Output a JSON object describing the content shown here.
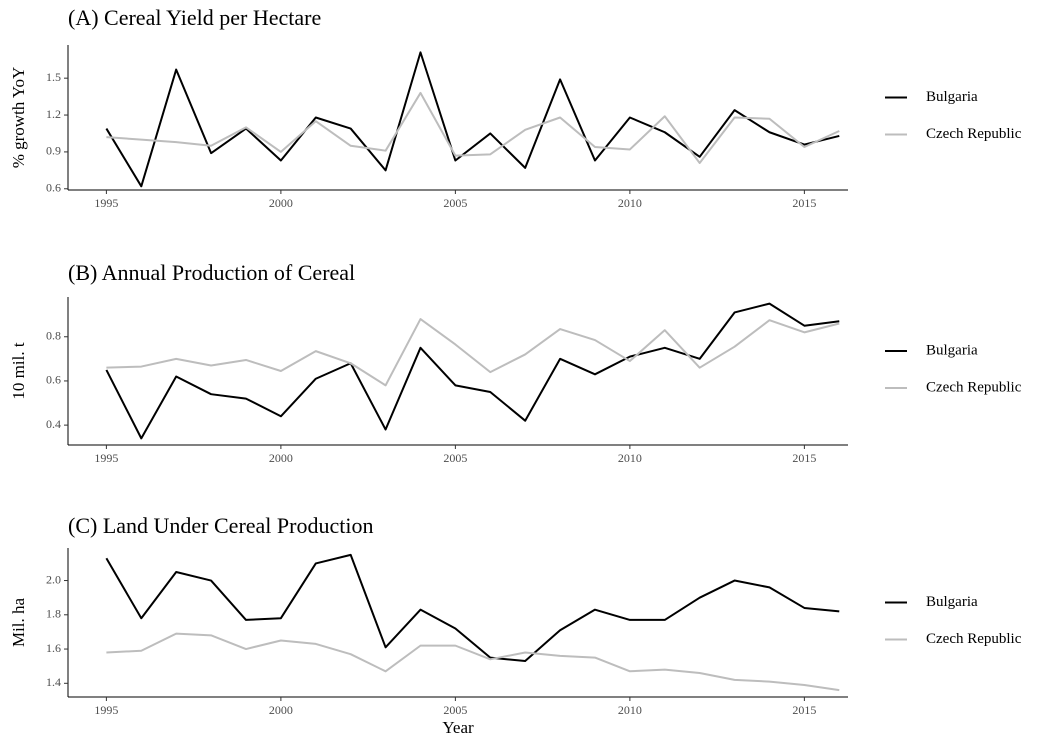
{
  "chart_data": [
    {
      "type": "line",
      "title": "(A) Cereal Yield per Hectare",
      "y_label": "% growth YoY",
      "x": [
        1995,
        1996,
        1997,
        1998,
        1999,
        2000,
        2001,
        2002,
        2003,
        2004,
        2005,
        2006,
        2007,
        2008,
        2009,
        2010,
        2011,
        2012,
        2013,
        2014,
        2015,
        2016
      ],
      "series": [
        {
          "name": "Bulgaria",
          "color": "#000000",
          "values": [
            1.09,
            0.62,
            1.57,
            0.89,
            1.09,
            0.83,
            1.18,
            1.09,
            0.75,
            1.71,
            0.83,
            1.05,
            0.77,
            1.49,
            0.83,
            1.18,
            1.06,
            0.86,
            1.24,
            1.06,
            0.96,
            1.03
          ]
        },
        {
          "name": "Czech Republic",
          "color": "#bdbdbd",
          "values": [
            1.02,
            1.0,
            0.98,
            0.95,
            1.1,
            0.9,
            1.15,
            0.95,
            0.91,
            1.38,
            0.87,
            0.88,
            1.08,
            1.18,
            0.94,
            0.92,
            1.19,
            0.81,
            1.18,
            1.17,
            0.94,
            1.07
          ]
        }
      ],
      "xlim": [
        1993.9,
        2016.25
      ],
      "xticks": [
        1995,
        2000,
        2005,
        2010,
        2015
      ],
      "ylim": [
        0.59,
        1.77
      ],
      "yticks": [
        0.6,
        0.9,
        1.2,
        1.5
      ],
      "legend": "right",
      "grid": false
    },
    {
      "type": "line",
      "title": "(B) Annual Production of Cereal",
      "y_label": "10 mil. t",
      "x": [
        1995,
        1996,
        1997,
        1998,
        1999,
        2000,
        2001,
        2002,
        2003,
        2004,
        2005,
        2006,
        2007,
        2008,
        2009,
        2010,
        2011,
        2012,
        2013,
        2014,
        2015,
        2016
      ],
      "series": [
        {
          "name": "Bulgaria",
          "color": "#000000",
          "values": [
            0.65,
            0.34,
            0.62,
            0.54,
            0.52,
            0.44,
            0.61,
            0.68,
            0.38,
            0.75,
            0.58,
            0.55,
            0.42,
            0.7,
            0.63,
            0.71,
            0.75,
            0.7,
            0.91,
            0.95,
            0.85,
            0.87
          ]
        },
        {
          "name": "Czech Republic",
          "color": "#bdbdbd",
          "values": [
            0.66,
            0.665,
            0.7,
            0.67,
            0.695,
            0.645,
            0.735,
            0.68,
            0.58,
            0.88,
            0.765,
            0.64,
            0.72,
            0.835,
            0.785,
            0.69,
            0.83,
            0.66,
            0.755,
            0.875,
            0.82,
            0.86
          ]
        }
      ],
      "xlim": [
        1993.9,
        2016.25
      ],
      "xticks": [
        1995,
        2000,
        2005,
        2010,
        2015
      ],
      "ylim": [
        0.31,
        0.98
      ],
      "yticks": [
        0.4,
        0.6,
        0.8
      ],
      "legend": "right",
      "grid": false
    },
    {
      "type": "line",
      "title": "(C) Land Under Cereal Production",
      "y_label": "Mil. ha",
      "x_label": "Year",
      "x": [
        1995,
        1996,
        1997,
        1998,
        1999,
        2000,
        2001,
        2002,
        2003,
        2004,
        2005,
        2006,
        2007,
        2008,
        2009,
        2010,
        2011,
        2012,
        2013,
        2014,
        2015,
        2016
      ],
      "series": [
        {
          "name": "Bulgaria",
          "color": "#000000",
          "values": [
            2.13,
            1.78,
            2.05,
            2.0,
            1.77,
            1.78,
            2.1,
            2.15,
            1.61,
            1.83,
            1.72,
            1.55,
            1.53,
            1.71,
            1.83,
            1.77,
            1.77,
            1.9,
            2.0,
            1.96,
            1.84,
            1.82
          ]
        },
        {
          "name": "Czech Republic",
          "color": "#bdbdbd",
          "values": [
            1.58,
            1.59,
            1.69,
            1.68,
            1.6,
            1.65,
            1.63,
            1.57,
            1.47,
            1.62,
            1.62,
            1.54,
            1.58,
            1.56,
            1.55,
            1.47,
            1.48,
            1.46,
            1.42,
            1.41,
            1.39,
            1.36
          ]
        }
      ],
      "xlim": [
        1993.9,
        2016.25
      ],
      "xticks": [
        1995,
        2000,
        2005,
        2010,
        2015
      ],
      "ylim": [
        1.32,
        2.19
      ],
      "yticks": [
        1.4,
        1.6,
        1.8,
        {
          "value": 2,
          "label": "2.0"
        }
      ],
      "legend": "right",
      "grid": false
    }
  ]
}
